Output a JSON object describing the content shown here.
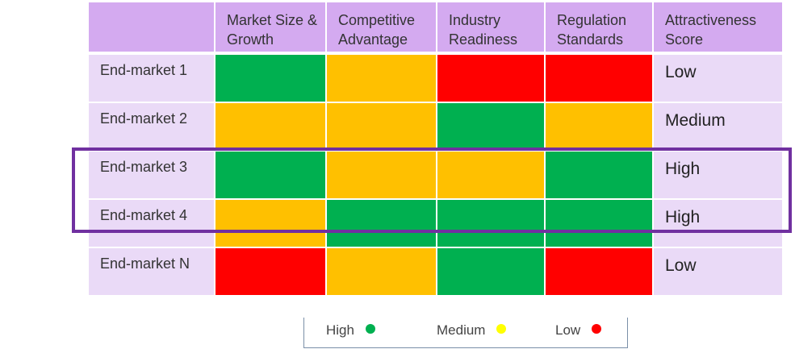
{
  "colors": {
    "High": "#00b050",
    "Medium": "#ffc000",
    "Low": "#ff0000",
    "header_bg": "#d4aaf0",
    "row_bg": "#eadaf7",
    "highlight": "#7030a0",
    "legend_dot_medium": "#ffff00"
  },
  "chart_data": {
    "type": "heatmap",
    "title": "",
    "columns": [
      "Market Size & Growth",
      "Competitive Advantage",
      "Industry Readiness",
      "Regulation Standards",
      "Attractiveness Score"
    ],
    "rows": [
      {
        "label": "End-market 1",
        "ratings": [
          "High",
          "Medium",
          "Low",
          "Low"
        ],
        "score": "Low"
      },
      {
        "label": "End-market 2",
        "ratings": [
          "Medium",
          "Medium",
          "High",
          "Medium"
        ],
        "score": "Medium"
      },
      {
        "label": "End-market 3",
        "ratings": [
          "High",
          "Medium",
          "Medium",
          "High"
        ],
        "score": "High"
      },
      {
        "label": "End-market 4",
        "ratings": [
          "Medium",
          "High",
          "High",
          "High"
        ],
        "score": "High"
      },
      {
        "label": "End-market N",
        "ratings": [
          "Low",
          "Medium",
          "High",
          "Low"
        ],
        "score": "Low"
      }
    ],
    "highlighted_rows": [
      "End-market 3",
      "End-market 4"
    ],
    "legend": [
      {
        "label": "High",
        "color": "#00b050"
      },
      {
        "label": "Medium",
        "color": "#ffff00"
      },
      {
        "label": "Low",
        "color": "#ff0000"
      }
    ]
  }
}
